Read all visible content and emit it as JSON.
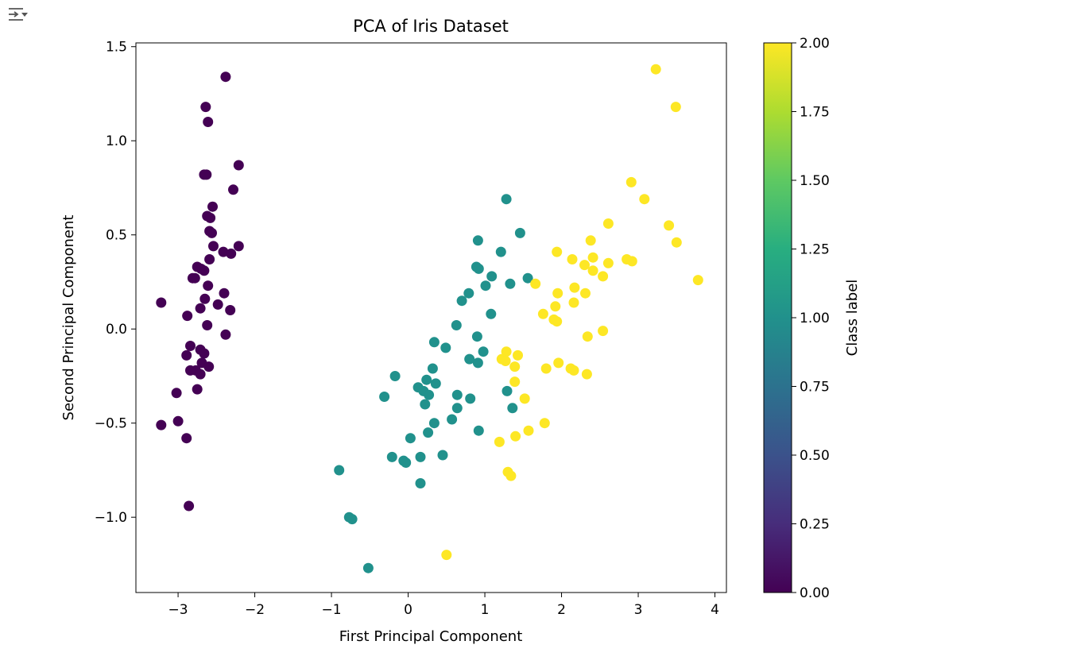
{
  "toolbar": {
    "icon": "output-collapse-icon"
  },
  "chart_data": {
    "type": "scatter",
    "title": "PCA of Iris Dataset",
    "xlabel": "First Principal Component",
    "ylabel": "Second Principal Component",
    "xlim": [
      -3.55,
      4.15
    ],
    "ylim": [
      -1.4,
      1.52
    ],
    "xticks": [
      -3,
      -2,
      -1,
      0,
      1,
      2,
      3,
      4
    ],
    "xtick_labels": [
      "−3",
      "−2",
      "−1",
      "0",
      "1",
      "2",
      "3",
      "4"
    ],
    "yticks": [
      -1.0,
      -0.5,
      0.0,
      0.5,
      1.0,
      1.5
    ],
    "ytick_labels": [
      "−1.0",
      "−0.5",
      "0.0",
      "0.5",
      "1.0",
      "1.5"
    ],
    "grid": false,
    "colormap": "viridis",
    "colorbar": {
      "label": "Class label",
      "range": [
        0,
        2
      ],
      "ticks": [
        0.0,
        0.25,
        0.5,
        0.75,
        1.0,
        1.25,
        1.5,
        1.75,
        2.0
      ],
      "tick_labels": [
        "0.00",
        "0.25",
        "0.50",
        "0.75",
        "1.00",
        "1.25",
        "1.50",
        "1.75",
        "2.00"
      ]
    },
    "class_colors": [
      "#440154",
      "#21918c",
      "#fde725"
    ],
    "series": [
      {
        "class": 0,
        "points": [
          [
            -2.38,
            1.34
          ],
          [
            -2.64,
            1.18
          ],
          [
            -2.61,
            1.1
          ],
          [
            -2.21,
            0.87
          ],
          [
            -2.63,
            0.82
          ],
          [
            -2.66,
            0.82
          ],
          [
            -2.28,
            0.74
          ],
          [
            -2.55,
            0.65
          ],
          [
            -2.62,
            0.6
          ],
          [
            -2.58,
            0.59
          ],
          [
            -2.59,
            0.52
          ],
          [
            -2.56,
            0.51
          ],
          [
            -2.54,
            0.44
          ],
          [
            -2.21,
            0.44
          ],
          [
            -2.41,
            0.41
          ],
          [
            -2.31,
            0.4
          ],
          [
            -2.75,
            0.33
          ],
          [
            -2.7,
            0.32
          ],
          [
            -2.66,
            0.31
          ],
          [
            -2.59,
            0.37
          ],
          [
            -2.81,
            0.27
          ],
          [
            -2.78,
            0.27
          ],
          [
            -2.48,
            0.13
          ],
          [
            -2.61,
            0.23
          ],
          [
            -2.65,
            0.16
          ],
          [
            -2.4,
            0.19
          ],
          [
            -2.32,
            0.1
          ],
          [
            -2.71,
            0.11
          ],
          [
            -3.22,
            0.14
          ],
          [
            -2.88,
            0.07
          ],
          [
            -2.62,
            0.02
          ],
          [
            -2.38,
            -0.03
          ],
          [
            -2.84,
            -0.09
          ],
          [
            -2.71,
            -0.11
          ],
          [
            -2.66,
            -0.13
          ],
          [
            -2.89,
            -0.14
          ],
          [
            -2.69,
            -0.18
          ],
          [
            -2.6,
            -0.2
          ],
          [
            -2.77,
            -0.22
          ],
          [
            -2.84,
            -0.22
          ],
          [
            -2.71,
            -0.24
          ],
          [
            -2.75,
            -0.32
          ],
          [
            -3.02,
            -0.34
          ],
          [
            -3.22,
            -0.51
          ],
          [
            -3.0,
            -0.49
          ],
          [
            -2.89,
            -0.58
          ],
          [
            -2.86,
            -0.94
          ]
        ]
      },
      {
        "class": 1,
        "points": [
          [
            1.28,
            0.69
          ],
          [
            1.46,
            0.51
          ],
          [
            0.91,
            0.47
          ],
          [
            1.21,
            0.41
          ],
          [
            0.89,
            0.33
          ],
          [
            0.92,
            0.32
          ],
          [
            1.09,
            0.28
          ],
          [
            1.56,
            0.27
          ],
          [
            1.33,
            0.24
          ],
          [
            1.01,
            0.23
          ],
          [
            0.79,
            0.19
          ],
          [
            0.7,
            0.15
          ],
          [
            1.08,
            0.08
          ],
          [
            0.63,
            0.02
          ],
          [
            0.9,
            -0.04
          ],
          [
            0.34,
            -0.07
          ],
          [
            0.49,
            -0.1
          ],
          [
            0.98,
            -0.12
          ],
          [
            0.8,
            -0.16
          ],
          [
            0.91,
            -0.18
          ],
          [
            0.32,
            -0.21
          ],
          [
            -0.17,
            -0.25
          ],
          [
            0.24,
            -0.27
          ],
          [
            0.36,
            -0.29
          ],
          [
            0.13,
            -0.31
          ],
          [
            0.2,
            -0.33
          ],
          [
            1.29,
            -0.33
          ],
          [
            0.27,
            -0.35
          ],
          [
            0.64,
            -0.35
          ],
          [
            -0.31,
            -0.36
          ],
          [
            0.81,
            -0.37
          ],
          [
            0.22,
            -0.4
          ],
          [
            0.64,
            -0.42
          ],
          [
            1.36,
            -0.42
          ],
          [
            0.57,
            -0.48
          ],
          [
            0.34,
            -0.5
          ],
          [
            0.92,
            -0.54
          ],
          [
            0.26,
            -0.55
          ],
          [
            0.03,
            -0.58
          ],
          [
            -0.21,
            -0.68
          ],
          [
            0.45,
            -0.67
          ],
          [
            0.16,
            -0.68
          ],
          [
            -0.06,
            -0.7
          ],
          [
            -0.03,
            -0.71
          ],
          [
            -0.9,
            -0.75
          ],
          [
            0.16,
            -0.82
          ],
          [
            -0.77,
            -1.0
          ],
          [
            -0.73,
            -1.01
          ],
          [
            -0.52,
            -1.27
          ]
        ]
      },
      {
        "class": 2,
        "points": [
          [
            3.23,
            1.38
          ],
          [
            3.49,
            1.18
          ],
          [
            2.91,
            0.78
          ],
          [
            3.08,
            0.69
          ],
          [
            2.61,
            0.56
          ],
          [
            3.4,
            0.55
          ],
          [
            3.5,
            0.46
          ],
          [
            2.38,
            0.47
          ],
          [
            1.94,
            0.41
          ],
          [
            2.14,
            0.37
          ],
          [
            2.41,
            0.38
          ],
          [
            2.85,
            0.37
          ],
          [
            2.3,
            0.34
          ],
          [
            2.92,
            0.36
          ],
          [
            2.61,
            0.35
          ],
          [
            2.41,
            0.31
          ],
          [
            2.54,
            0.28
          ],
          [
            3.78,
            0.26
          ],
          [
            1.66,
            0.24
          ],
          [
            2.17,
            0.22
          ],
          [
            1.95,
            0.19
          ],
          [
            2.31,
            0.19
          ],
          [
            2.16,
            0.14
          ],
          [
            1.92,
            0.12
          ],
          [
            1.76,
            0.08
          ],
          [
            1.9,
            0.05
          ],
          [
            1.94,
            0.04
          ],
          [
            2.54,
            -0.01
          ],
          [
            2.34,
            -0.04
          ],
          [
            1.28,
            -0.12
          ],
          [
            1.43,
            -0.14
          ],
          [
            1.22,
            -0.16
          ],
          [
            1.27,
            -0.17
          ],
          [
            1.96,
            -0.18
          ],
          [
            1.39,
            -0.2
          ],
          [
            2.12,
            -0.21
          ],
          [
            2.16,
            -0.22
          ],
          [
            1.8,
            -0.21
          ],
          [
            2.33,
            -0.24
          ],
          [
            1.39,
            -0.28
          ],
          [
            1.52,
            -0.37
          ],
          [
            1.78,
            -0.5
          ],
          [
            1.57,
            -0.54
          ],
          [
            1.4,
            -0.57
          ],
          [
            1.19,
            -0.6
          ],
          [
            1.3,
            -0.76
          ],
          [
            1.34,
            -0.78
          ],
          [
            0.5,
            -1.2
          ]
        ]
      }
    ]
  }
}
